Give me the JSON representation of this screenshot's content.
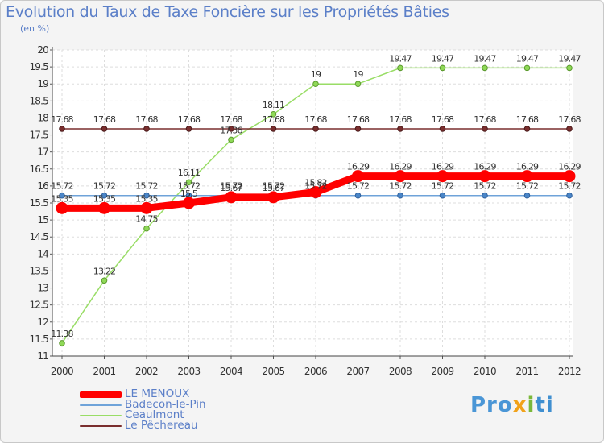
{
  "chart_data": {
    "type": "line",
    "title": "Evolution du Taux de Taxe Foncière sur les Propriétés Bâties",
    "subtitle": "(en %)",
    "xlabel": "",
    "ylabel": "",
    "ylim": [
      11,
      20
    ],
    "y_ticks": [
      "11",
      "11.5",
      "12",
      "12.5",
      "13",
      "13.5",
      "14",
      "14.5",
      "15",
      "15.5",
      "16",
      "16.5",
      "17",
      "17.5",
      "18",
      "18.5",
      "19",
      "19.5",
      "20"
    ],
    "categories": [
      "2000",
      "2001",
      "2002",
      "2003",
      "2004",
      "2005",
      "2006",
      "2007",
      "2008",
      "2009",
      "2010",
      "2011",
      "2012"
    ],
    "grid": true,
    "legend_position": "bottom-left",
    "series": [
      {
        "name": "LE MENOUX",
        "color": "#ff0000",
        "values": [
          15.35,
          15.35,
          15.35,
          15.5,
          15.67,
          15.67,
          15.82,
          16.29,
          16.29,
          16.29,
          16.29,
          16.29,
          16.29
        ],
        "labels": [
          "15.35",
          "15.35",
          "15.35",
          "15.5",
          "15.67",
          "15.67",
          "15.82",
          "16.29",
          "16.29",
          "16.29",
          "16.29",
          "16.29",
          "16.29"
        ]
      },
      {
        "name": "Badecon-le-Pin",
        "color": "#6fa3d9",
        "values": [
          15.72,
          15.72,
          15.72,
          15.72,
          15.72,
          15.72,
          15.72,
          15.72,
          15.72,
          15.72,
          15.72,
          15.72,
          15.72
        ],
        "labels": [
          "15.72",
          "15.72",
          "15.72",
          "15.72",
          "15.72",
          "15.72",
          "15.72",
          "15.72",
          "15.72",
          "15.72",
          "15.72",
          "15.72",
          "15.72"
        ]
      },
      {
        "name": "Ceaulmont",
        "color": "#99dd66",
        "values": [
          11.38,
          13.22,
          14.75,
          16.11,
          17.36,
          18.11,
          19,
          19,
          19.47,
          19.47,
          19.47,
          19.47,
          19.47
        ],
        "labels": [
          "11.38",
          "13.22",
          "14.75",
          "16.11",
          "17.36",
          "18.11",
          "19",
          "19",
          "19.47",
          "19.47",
          "19.47",
          "19.47",
          "19.47"
        ]
      },
      {
        "name": "Le Pêchereau",
        "color": "#7a2e2e",
        "values": [
          17.68,
          17.68,
          17.68,
          17.68,
          17.68,
          17.68,
          17.68,
          17.68,
          17.68,
          17.68,
          17.68,
          17.68,
          17.68
        ],
        "labels": [
          "17.68",
          "17.68",
          "17.68",
          "17.68",
          "17.68",
          "17.68",
          "17.68",
          "17.68",
          "17.68",
          "17.68",
          "17.68",
          "17.68",
          "17.68"
        ]
      }
    ]
  },
  "logo": {
    "p1": "Pro",
    "p2": "x",
    "p3": "i",
    "p4": "ti"
  }
}
